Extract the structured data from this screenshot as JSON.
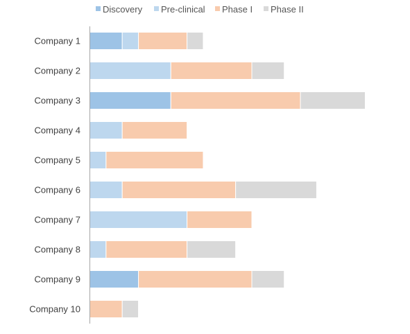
{
  "chart_data": {
    "type": "bar",
    "orientation": "horizontal",
    "stacked": true,
    "title": "",
    "xlabel": "",
    "ylabel": "",
    "grid": false,
    "legend_position": "top",
    "categories": [
      "Company 1",
      "Company 2",
      "Company 3",
      "Company 4",
      "Company 5",
      "Company 6",
      "Company 7",
      "Company 8",
      "Company 9",
      "Company 10"
    ],
    "series": [
      {
        "name": "Discovery",
        "color": "#9dc3e6",
        "values": [
          2,
          0,
          5,
          0,
          0,
          0,
          0,
          0,
          3,
          0
        ]
      },
      {
        "name": "Pre-clinical",
        "color": "#bdd7ee",
        "values": [
          1,
          5,
          0,
          2,
          1,
          2,
          6,
          1,
          0,
          0
        ]
      },
      {
        "name": "Phase I",
        "color": "#f8cbad",
        "values": [
          3,
          5,
          8,
          4,
          6,
          7,
          4,
          5,
          7,
          2
        ]
      },
      {
        "name": "Phase II",
        "color": "#d9d9d9",
        "values": [
          1,
          2,
          4,
          0,
          0,
          5,
          0,
          3,
          2,
          1
        ]
      }
    ],
    "xlim": [
      0,
      20
    ]
  }
}
